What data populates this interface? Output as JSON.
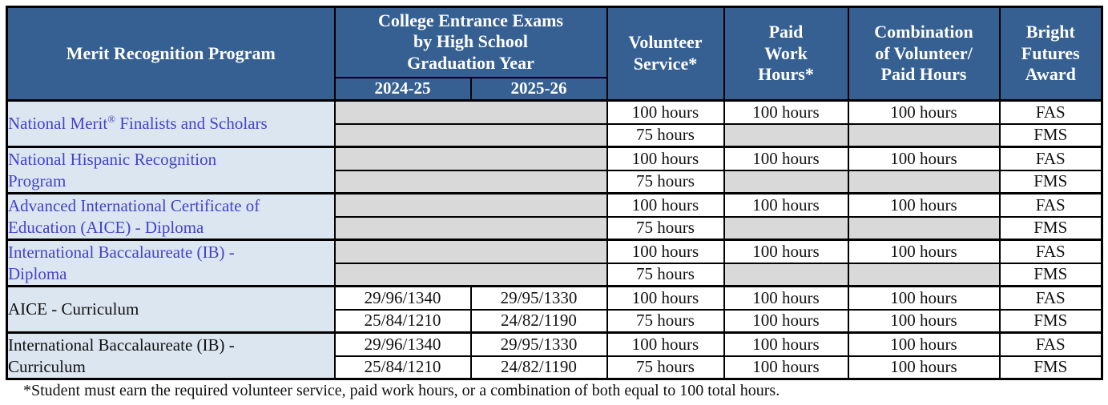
{
  "colors": {
    "header_bg": "#366092",
    "header_text": "#ffffff",
    "program_cell_bg": "#dce6f1",
    "empty_cell_bg": "#d9d9d9",
    "link_text": "#4343cb",
    "border": "#000000"
  },
  "table": {
    "headers": {
      "program": "Merit Recognition Program",
      "exams_group": "College Entrance Exams\nby High School\nGraduation Year",
      "exam_years": [
        "2024-25",
        "2025-26"
      ],
      "volunteer": "Volunteer\nService*",
      "paid": "Paid\nWork\nHours*",
      "combination": "Combination\nof Volunteer/\nPaid Hours",
      "award": "Bright\nFutures\nAward"
    },
    "programs": [
      {
        "name": "National Merit® Finalists and Scholars",
        "link": true,
        "rows": [
          {
            "exams_merged": true,
            "exams": [
              "",
              ""
            ],
            "volunteer": "100 hours",
            "paid": "100 hours",
            "combination": "100 hours",
            "award": "FAS"
          },
          {
            "exams_merged": true,
            "exams": [
              "",
              ""
            ],
            "volunteer": "75 hours",
            "paid": "",
            "combination": "",
            "award": "FMS"
          }
        ]
      },
      {
        "name": "National Hispanic Recognition Program",
        "link": true,
        "rows": [
          {
            "exams_merged": true,
            "exams": [
              "",
              ""
            ],
            "volunteer": "100 hours",
            "paid": "100 hours",
            "combination": "100 hours",
            "award": "FAS"
          },
          {
            "exams_merged": true,
            "exams": [
              "",
              ""
            ],
            "volunteer": "75 hours",
            "paid": "",
            "combination": "",
            "award": "FMS"
          }
        ]
      },
      {
        "name": "Advanced International Certificate of Education (AICE) - Diploma",
        "link": true,
        "rows": [
          {
            "exams_merged": true,
            "exams": [
              "",
              ""
            ],
            "volunteer": "100 hours",
            "paid": "100 hours",
            "combination": "100 hours",
            "award": "FAS"
          },
          {
            "exams_merged": true,
            "exams": [
              "",
              ""
            ],
            "volunteer": "75 hours",
            "paid": "",
            "combination": "",
            "award": "FMS"
          }
        ]
      },
      {
        "name": "International Baccalaureate (IB) - Diploma",
        "link": true,
        "rows": [
          {
            "exams_merged": true,
            "exams": [
              "",
              ""
            ],
            "volunteer": "100 hours",
            "paid": "100 hours",
            "combination": "100 hours",
            "award": "FAS"
          },
          {
            "exams_merged": true,
            "exams": [
              "",
              ""
            ],
            "volunteer": "75 hours",
            "paid": "",
            "combination": "",
            "award": "FMS"
          }
        ]
      },
      {
        "name": "AICE - Curriculum",
        "link": false,
        "rows": [
          {
            "exams_merged": false,
            "exams": [
              "29/96/1340",
              "29/95/1330"
            ],
            "volunteer": "100 hours",
            "paid": "100 hours",
            "combination": "100 hours",
            "award": "FAS"
          },
          {
            "exams_merged": false,
            "exams": [
              "25/84/1210",
              "24/82/1190"
            ],
            "volunteer": "75 hours",
            "paid": "100 hours",
            "combination": "100 hours",
            "award": "FMS"
          }
        ]
      },
      {
        "name": "International Baccalaureate (IB) - Curriculum",
        "link": false,
        "rows": [
          {
            "exams_merged": false,
            "exams": [
              "29/96/1340",
              "29/95/1330"
            ],
            "volunteer": "100 hours",
            "paid": "100 hours",
            "combination": "100 hours",
            "award": "FAS"
          },
          {
            "exams_merged": false,
            "exams": [
              "25/84/1210",
              "24/82/1190"
            ],
            "volunteer": "75 hours",
            "paid": "100 hours",
            "combination": "100 hours",
            "award": "FMS"
          }
        ]
      }
    ],
    "footnote": "*Student must earn the required volunteer service, paid work hours, or a combination of both equal to 100 total hours."
  }
}
